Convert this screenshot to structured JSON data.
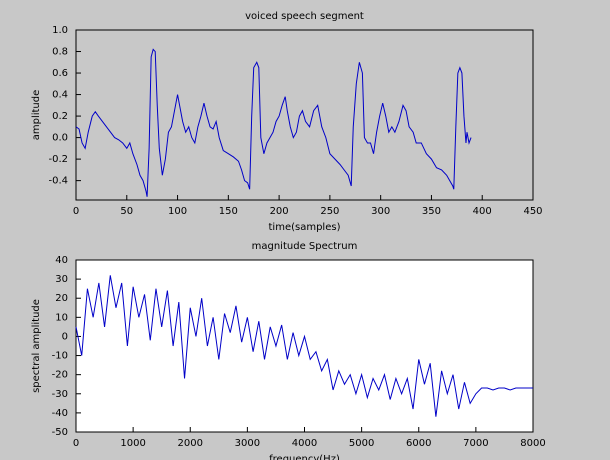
{
  "chart_data": [
    {
      "type": "line",
      "title": "voiced speech segment",
      "xlabel": "time(samples)",
      "ylabel": "amplitude",
      "color": "#0000c8",
      "plot_color": "#c8c8c8",
      "xlim": [
        0,
        450
      ],
      "xticks": [
        0,
        50,
        100,
        150,
        200,
        250,
        300,
        350,
        400,
        450
      ],
      "ylim": [
        -0.58,
        1.0
      ],
      "yticks": [
        {
          "value": 1,
          "label": "1.0"
        },
        0.8,
        0.6,
        0.4,
        0.2,
        {
          "value": 0,
          "label": "0.0"
        },
        -0.2,
        -0.4
      ],
      "x": [
        0,
        3,
        6,
        9,
        12,
        16,
        19,
        22,
        26,
        30,
        34,
        38,
        42,
        46,
        50,
        53,
        56,
        60,
        63,
        66,
        69,
        70,
        72,
        74,
        76,
        78,
        80,
        82,
        85,
        88,
        91,
        94,
        97,
        100,
        102,
        105,
        108,
        111,
        114,
        117,
        120,
        123,
        126,
        129,
        132,
        135,
        138,
        141,
        145,
        150,
        155,
        160,
        163,
        166,
        169,
        171,
        173,
        175,
        178,
        180,
        182,
        185,
        188,
        191,
        194,
        197,
        200,
        203,
        206,
        208,
        211,
        214,
        217,
        220,
        223,
        226,
        230,
        234,
        238,
        242,
        246,
        250,
        255,
        260,
        264,
        268,
        271,
        273,
        276,
        279,
        282,
        284,
        287,
        290,
        293,
        296,
        299,
        302,
        305,
        308,
        311,
        314,
        318,
        322,
        325,
        328,
        332,
        335,
        340,
        345,
        350,
        355,
        360,
        365,
        368,
        371,
        372,
        374,
        376,
        378,
        380,
        382,
        384,
        385,
        387,
        389
      ],
      "values": [
        0.1,
        0.08,
        -0.05,
        -0.1,
        0.05,
        0.2,
        0.24,
        0.2,
        0.15,
        0.1,
        0.05,
        0.0,
        -0.02,
        -0.05,
        -0.1,
        -0.05,
        -0.15,
        -0.25,
        -0.35,
        -0.4,
        -0.5,
        -0.55,
        -0.1,
        0.75,
        0.82,
        0.8,
        0.3,
        -0.1,
        -0.35,
        -0.2,
        0.05,
        0.1,
        0.25,
        0.4,
        0.3,
        0.15,
        0.05,
        0.1,
        0.0,
        -0.05,
        0.1,
        0.2,
        0.32,
        0.2,
        0.1,
        0.08,
        0.15,
        0.0,
        -0.12,
        -0.15,
        -0.18,
        -0.22,
        -0.3,
        -0.4,
        -0.42,
        -0.48,
        0.2,
        0.65,
        0.7,
        0.65,
        0.0,
        -0.15,
        -0.05,
        0.0,
        0.05,
        0.15,
        0.2,
        0.3,
        0.38,
        0.25,
        0.1,
        0.0,
        0.05,
        0.2,
        0.25,
        0.15,
        0.1,
        0.25,
        0.3,
        0.1,
        0.0,
        -0.15,
        -0.2,
        -0.25,
        -0.3,
        -0.35,
        -0.45,
        0.1,
        0.5,
        0.7,
        0.6,
        0.0,
        -0.05,
        -0.05,
        -0.15,
        0.05,
        0.2,
        0.32,
        0.2,
        0.05,
        0.1,
        0.05,
        0.15,
        0.3,
        0.25,
        0.1,
        0.05,
        -0.05,
        -0.05,
        -0.15,
        -0.2,
        -0.28,
        -0.3,
        -0.35,
        -0.4,
        -0.45,
        -0.48,
        0.1,
        0.6,
        0.65,
        0.6,
        0.2,
        -0.05,
        0.05,
        -0.05,
        0.0
      ]
    },
    {
      "type": "line",
      "title": "magnitude Spectrum",
      "xlabel": "frequency(Hz)",
      "ylabel": "spectral amplitude",
      "color": "#0000c8",
      "plot_color": "#ffffff",
      "xlim": [
        0,
        8000
      ],
      "xticks": [
        0,
        1000,
        2000,
        3000,
        4000,
        5000,
        6000,
        7000,
        8000
      ],
      "ylim": [
        -50,
        40
      ],
      "yticks": [
        40,
        30,
        20,
        10,
        0,
        -10,
        -20,
        -30,
        -40,
        -50
      ],
      "x": [
        0,
        100,
        200,
        300,
        400,
        500,
        600,
        700,
        800,
        900,
        1000,
        1100,
        1200,
        1300,
        1400,
        1500,
        1600,
        1700,
        1800,
        1900,
        2000,
        2100,
        2200,
        2300,
        2400,
        2500,
        2600,
        2700,
        2800,
        2900,
        3000,
        3100,
        3200,
        3300,
        3400,
        3500,
        3600,
        3700,
        3800,
        3900,
        4000,
        4100,
        4200,
        4300,
        4400,
        4500,
        4600,
        4700,
        4800,
        4900,
        5000,
        5100,
        5200,
        5300,
        5400,
        5500,
        5600,
        5700,
        5800,
        5900,
        6000,
        6100,
        6200,
        6300,
        6400,
        6500,
        6600,
        6700,
        6800,
        6900,
        7000,
        7100,
        7200,
        7300,
        7400,
        7500,
        7600,
        7700,
        7800,
        7900,
        8000
      ],
      "values": [
        5,
        -10,
        25,
        10,
        28,
        5,
        32,
        15,
        28,
        -5,
        26,
        10,
        22,
        -2,
        25,
        5,
        24,
        -5,
        18,
        -22,
        15,
        0,
        20,
        -5,
        10,
        -12,
        12,
        2,
        16,
        -3,
        10,
        -8,
        8,
        -12,
        5,
        -5,
        6,
        -12,
        2,
        -10,
        0,
        -12,
        -8,
        -18,
        -12,
        -28,
        -18,
        -25,
        -20,
        -30,
        -20,
        -32,
        -22,
        -28,
        -20,
        -33,
        -22,
        -30,
        -22,
        -38,
        -12,
        -25,
        -14,
        -42,
        -18,
        -30,
        -20,
        -38,
        -24,
        -35,
        -30,
        -27,
        -27,
        -28,
        -27,
        -27,
        -28,
        -27,
        -27,
        -27,
        -27
      ]
    }
  ]
}
